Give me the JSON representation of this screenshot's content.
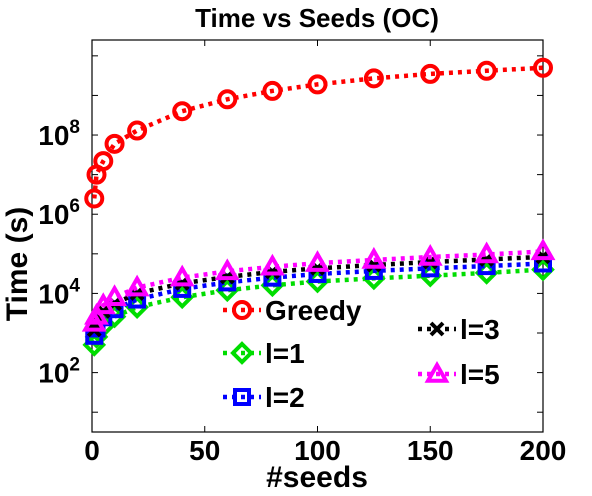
{
  "chart_data": {
    "type": "line",
    "title": "Time vs Seeds (OC)",
    "xlabel": "#seeds",
    "ylabel": "Time (s)",
    "xlim": [
      0,
      200
    ],
    "ylim_log10": [
      0.5,
      10.4
    ],
    "yscale": "log",
    "x_ticks": [
      "0",
      "50",
      "100",
      "150",
      "200"
    ],
    "y_ticks": [
      {
        "base": "10",
        "exp": "2",
        "value": 100
      },
      {
        "base": "10",
        "exp": "4",
        "value": 10000
      },
      {
        "base": "10",
        "exp": "6",
        "value": 1000000
      },
      {
        "base": "10",
        "exp": "8",
        "value": 100000000
      }
    ],
    "x": [
      1,
      2,
      5,
      10,
      20,
      40,
      60,
      80,
      100,
      125,
      150,
      175,
      200
    ],
    "series": [
      {
        "name": "Greedy",
        "color": "#ff0000",
        "marker": "circle",
        "values": [
          2500000.0,
          10000000.0,
          22000000.0,
          60000000.0,
          130000000.0,
          400000000.0,
          800000000.0,
          1300000000.0,
          1900000000.0,
          2700000000.0,
          3500000000.0,
          4200000000.0,
          5000000000.0
        ]
      },
      {
        "name": "l=1",
        "color": "#00dd00",
        "marker": "diamond",
        "values": [
          500,
          800,
          1500,
          2600,
          4500,
          8000,
          12000,
          16000,
          20000,
          24000,
          28000,
          33000,
          40000
        ]
      },
      {
        "name": "l=2",
        "color": "#0000ff",
        "marker": "square",
        "values": [
          850,
          1300,
          2500,
          4000,
          7000,
          13000,
          19000,
          25000,
          31000,
          37000,
          43000,
          49000,
          57000
        ]
      },
      {
        "name": "l=3",
        "color": "#000000",
        "marker": "x",
        "values": [
          1200,
          1800,
          3500,
          5500,
          10000,
          18000,
          26000,
          35000,
          43000,
          52000,
          62000,
          72000,
          84000
        ]
      },
      {
        "name": "l=5",
        "color": "#ff00ff",
        "marker": "triangle",
        "values": [
          1800,
          2700,
          5000,
          8000,
          14000,
          25000,
          36000,
          47000,
          58000,
          70000,
          83000,
          96000,
          115000
        ]
      }
    ],
    "grid": false,
    "legend": "bottom-left and bottom-right, inside"
  }
}
